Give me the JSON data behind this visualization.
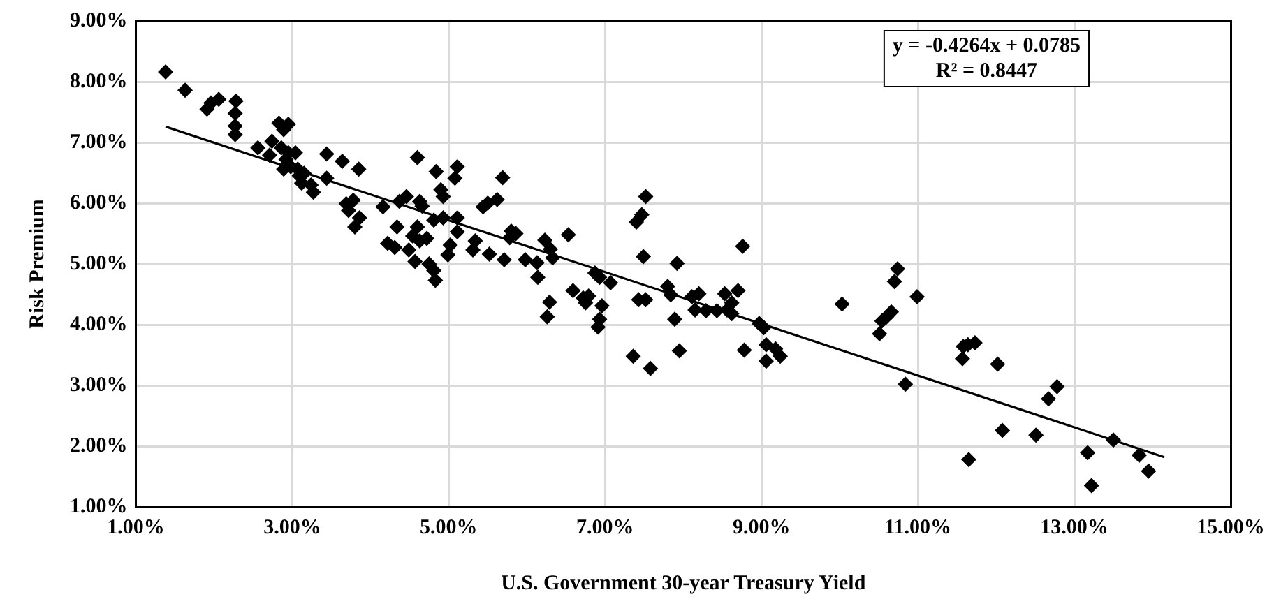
{
  "chart_data": {
    "type": "scatter",
    "xlabel": "U.S. Government 30-year Treasury Yield",
    "ylabel": "Risk Premium",
    "annotations": [
      "y = -0.4264x + 0.0785",
      "R² = 0.8447"
    ],
    "xlim": [
      1,
      15
    ],
    "xticks": [
      {
        "value": 1,
        "label": "1.00%"
      },
      {
        "value": 3,
        "label": "3.00%"
      },
      {
        "value": 5,
        "label": "5.00%"
      },
      {
        "value": 7,
        "label": "7.00%"
      },
      {
        "value": 9,
        "label": "9.00%"
      },
      {
        "value": 11,
        "label": "11.00%"
      },
      {
        "value": 13,
        "label": "13.00%"
      },
      {
        "value": 15,
        "label": "15.00%"
      }
    ],
    "ylim": [
      1,
      9
    ],
    "yticks": [
      {
        "value": 1,
        "label": "1.00%"
      },
      {
        "value": 2,
        "label": "2.00%"
      },
      {
        "value": 3,
        "label": "3.00%"
      },
      {
        "value": 4,
        "label": "4.00%"
      },
      {
        "value": 5,
        "label": "5.00%"
      },
      {
        "value": 6,
        "label": "6.00%"
      },
      {
        "value": 7,
        "label": "7.00%"
      },
      {
        "value": 8,
        "label": "8.00%"
      },
      {
        "value": 9,
        "label": "9.00%"
      }
    ],
    "grid": true,
    "legend": false,
    "marker": "diamond",
    "series": [
      {
        "type": "scatter",
        "color": "#000000",
        "x": [
          1.38,
          1.63,
          1.91,
          1.96,
          2.06,
          2.28,
          2.27,
          2.27,
          2.27,
          2.56,
          2.74,
          2.71,
          2.83,
          2.95,
          2.89,
          2.86,
          2.95,
          3.04,
          2.92,
          2.98,
          2.89,
          3.07,
          3.09,
          3.15,
          3.12,
          3.24,
          3.27,
          3.44,
          3.44,
          3.64,
          3.85,
          3.69,
          3.78,
          3.72,
          3.86,
          3.8,
          4.16,
          4.22,
          4.31,
          4.34,
          4.37,
          4.46,
          4.6,
          4.63,
          4.66,
          4.6,
          4.54,
          4.63,
          4.72,
          4.49,
          4.57,
          4.75,
          4.81,
          4.83,
          4.84,
          4.9,
          4.93,
          4.81,
          4.93,
          4.99,
          5.02,
          5.11,
          5.08,
          5.11,
          5.11,
          5.34,
          5.31,
          5.69,
          5.44,
          5.5,
          5.62,
          5.8,
          5.86,
          5.78,
          5.71,
          5.52,
          5.98,
          6.13,
          6.14,
          6.23,
          6.3,
          6.33,
          6.53,
          6.29,
          6.26,
          6.59,
          6.72,
          6.79,
          6.75,
          6.87,
          6.93,
          7.07,
          6.96,
          6.93,
          6.91,
          7.52,
          7.47,
          7.4,
          7.49,
          7.92,
          7.43,
          7.52,
          7.8,
          7.84,
          7.89,
          7.36,
          7.58,
          7.95,
          8.11,
          8.2,
          8.15,
          8.29,
          8.43,
          8.56,
          8.62,
          8.53,
          8.7,
          8.62,
          8.76,
          8.78,
          8.97,
          9.03,
          9.06,
          9.18,
          9.24,
          9.06,
          10.03,
          10.74,
          10.7,
          10.99,
          10.66,
          10.6,
          10.54,
          10.51,
          10.84,
          11.58,
          11.64,
          11.73,
          11.57,
          12.02,
          11.65,
          12.08,
          12.51,
          12.67,
          12.78,
          13.17,
          13.22,
          13.5,
          13.83,
          13.95
        ],
        "values": [
          8.16,
          7.86,
          7.55,
          7.65,
          7.71,
          7.68,
          7.48,
          7.27,
          7.13,
          6.91,
          7.02,
          6.79,
          7.32,
          7.3,
          7.21,
          6.91,
          6.83,
          6.83,
          6.72,
          6.6,
          6.56,
          6.56,
          6.45,
          6.49,
          6.33,
          6.3,
          6.18,
          6.81,
          6.41,
          6.69,
          6.56,
          5.99,
          6.05,
          5.88,
          5.76,
          5.61,
          5.94,
          5.34,
          5.27,
          5.61,
          6.03,
          6.11,
          6.75,
          6.03,
          5.95,
          5.61,
          5.46,
          5.38,
          5.42,
          5.23,
          5.04,
          5.0,
          4.89,
          4.73,
          6.52,
          6.22,
          6.11,
          5.72,
          5.76,
          5.15,
          5.31,
          6.6,
          6.41,
          5.76,
          5.53,
          5.38,
          5.23,
          6.42,
          5.94,
          6.0,
          6.06,
          5.54,
          5.5,
          5.43,
          5.07,
          5.16,
          5.07,
          5.02,
          4.78,
          5.39,
          5.24,
          5.1,
          5.48,
          4.37,
          4.13,
          4.56,
          4.44,
          4.47,
          4.36,
          4.85,
          4.78,
          4.69,
          4.31,
          4.09,
          3.96,
          6.11,
          5.81,
          5.69,
          5.12,
          5.01,
          4.41,
          4.41,
          4.63,
          4.49,
          4.09,
          3.48,
          3.28,
          3.57,
          4.46,
          4.51,
          4.24,
          4.23,
          4.23,
          4.24,
          4.18,
          4.51,
          4.56,
          4.36,
          5.29,
          3.58,
          4.02,
          3.95,
          3.67,
          3.6,
          3.48,
          3.4,
          4.34,
          4.92,
          4.71,
          4.46,
          4.21,
          4.13,
          4.06,
          3.85,
          3.02,
          3.64,
          3.67,
          3.7,
          3.44,
          3.35,
          1.78,
          2.26,
          2.18,
          2.78,
          2.98,
          1.89,
          1.35,
          2.1,
          1.85,
          1.59
        ]
      },
      {
        "type": "line",
        "color": "#000000",
        "marker": "none",
        "x": [
          1.38,
          14.15
        ],
        "values": [
          7.26,
          1.82
        ]
      }
    ]
  }
}
